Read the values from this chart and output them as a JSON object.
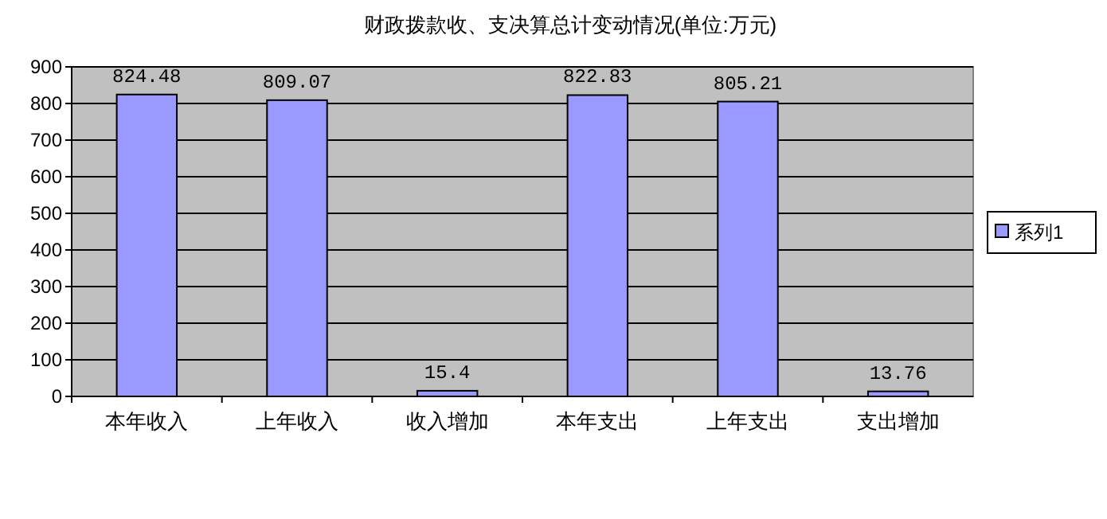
{
  "chart_data": {
    "type": "bar",
    "title": "财政拨款收、支决算总计变动情况(单位:万元)",
    "categories": [
      "本年收入",
      "上年收入",
      "收入增加",
      "本年支出",
      "上年支出",
      "支出增加"
    ],
    "series": [
      {
        "name": "系列1",
        "color": "#9999ff",
        "values": [
          824.48,
          809.07,
          15.4,
          822.83,
          805.21,
          13.76
        ]
      }
    ],
    "ylim": [
      0,
      900
    ],
    "yticks": [
      0,
      100,
      200,
      300,
      400,
      500,
      600,
      700,
      800,
      900
    ],
    "grid": "y",
    "legend": "right",
    "data_labels": true
  }
}
